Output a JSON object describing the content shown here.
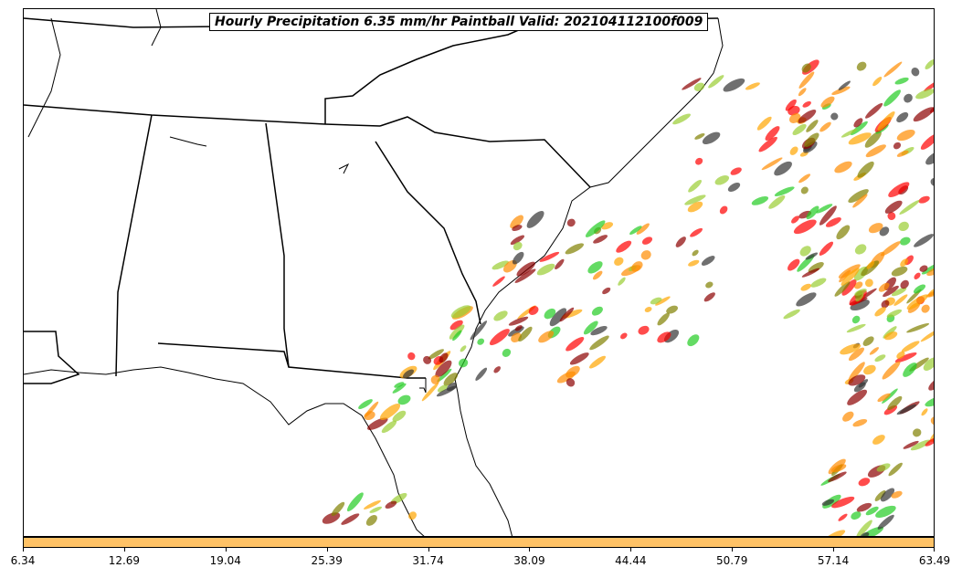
{
  "title": "Hourly Precipitation 6.35 mm/hr Paintball Valid: 202104112100f009",
  "colorbar": {
    "color": "#ffc266",
    "ticks": [
      "6.34",
      "12.69",
      "19.04",
      "25.39",
      "31.74",
      "38.09",
      "44.44",
      "50.79",
      "57.14",
      "63.49"
    ]
  },
  "map": {
    "region": "Southeastern United States",
    "paintball_colors": [
      "#ff0000",
      "#ff8c00",
      "#ffa500",
      "#22cc22",
      "#8b0000",
      "#808000",
      "#333333",
      "#9acd32"
    ]
  }
}
